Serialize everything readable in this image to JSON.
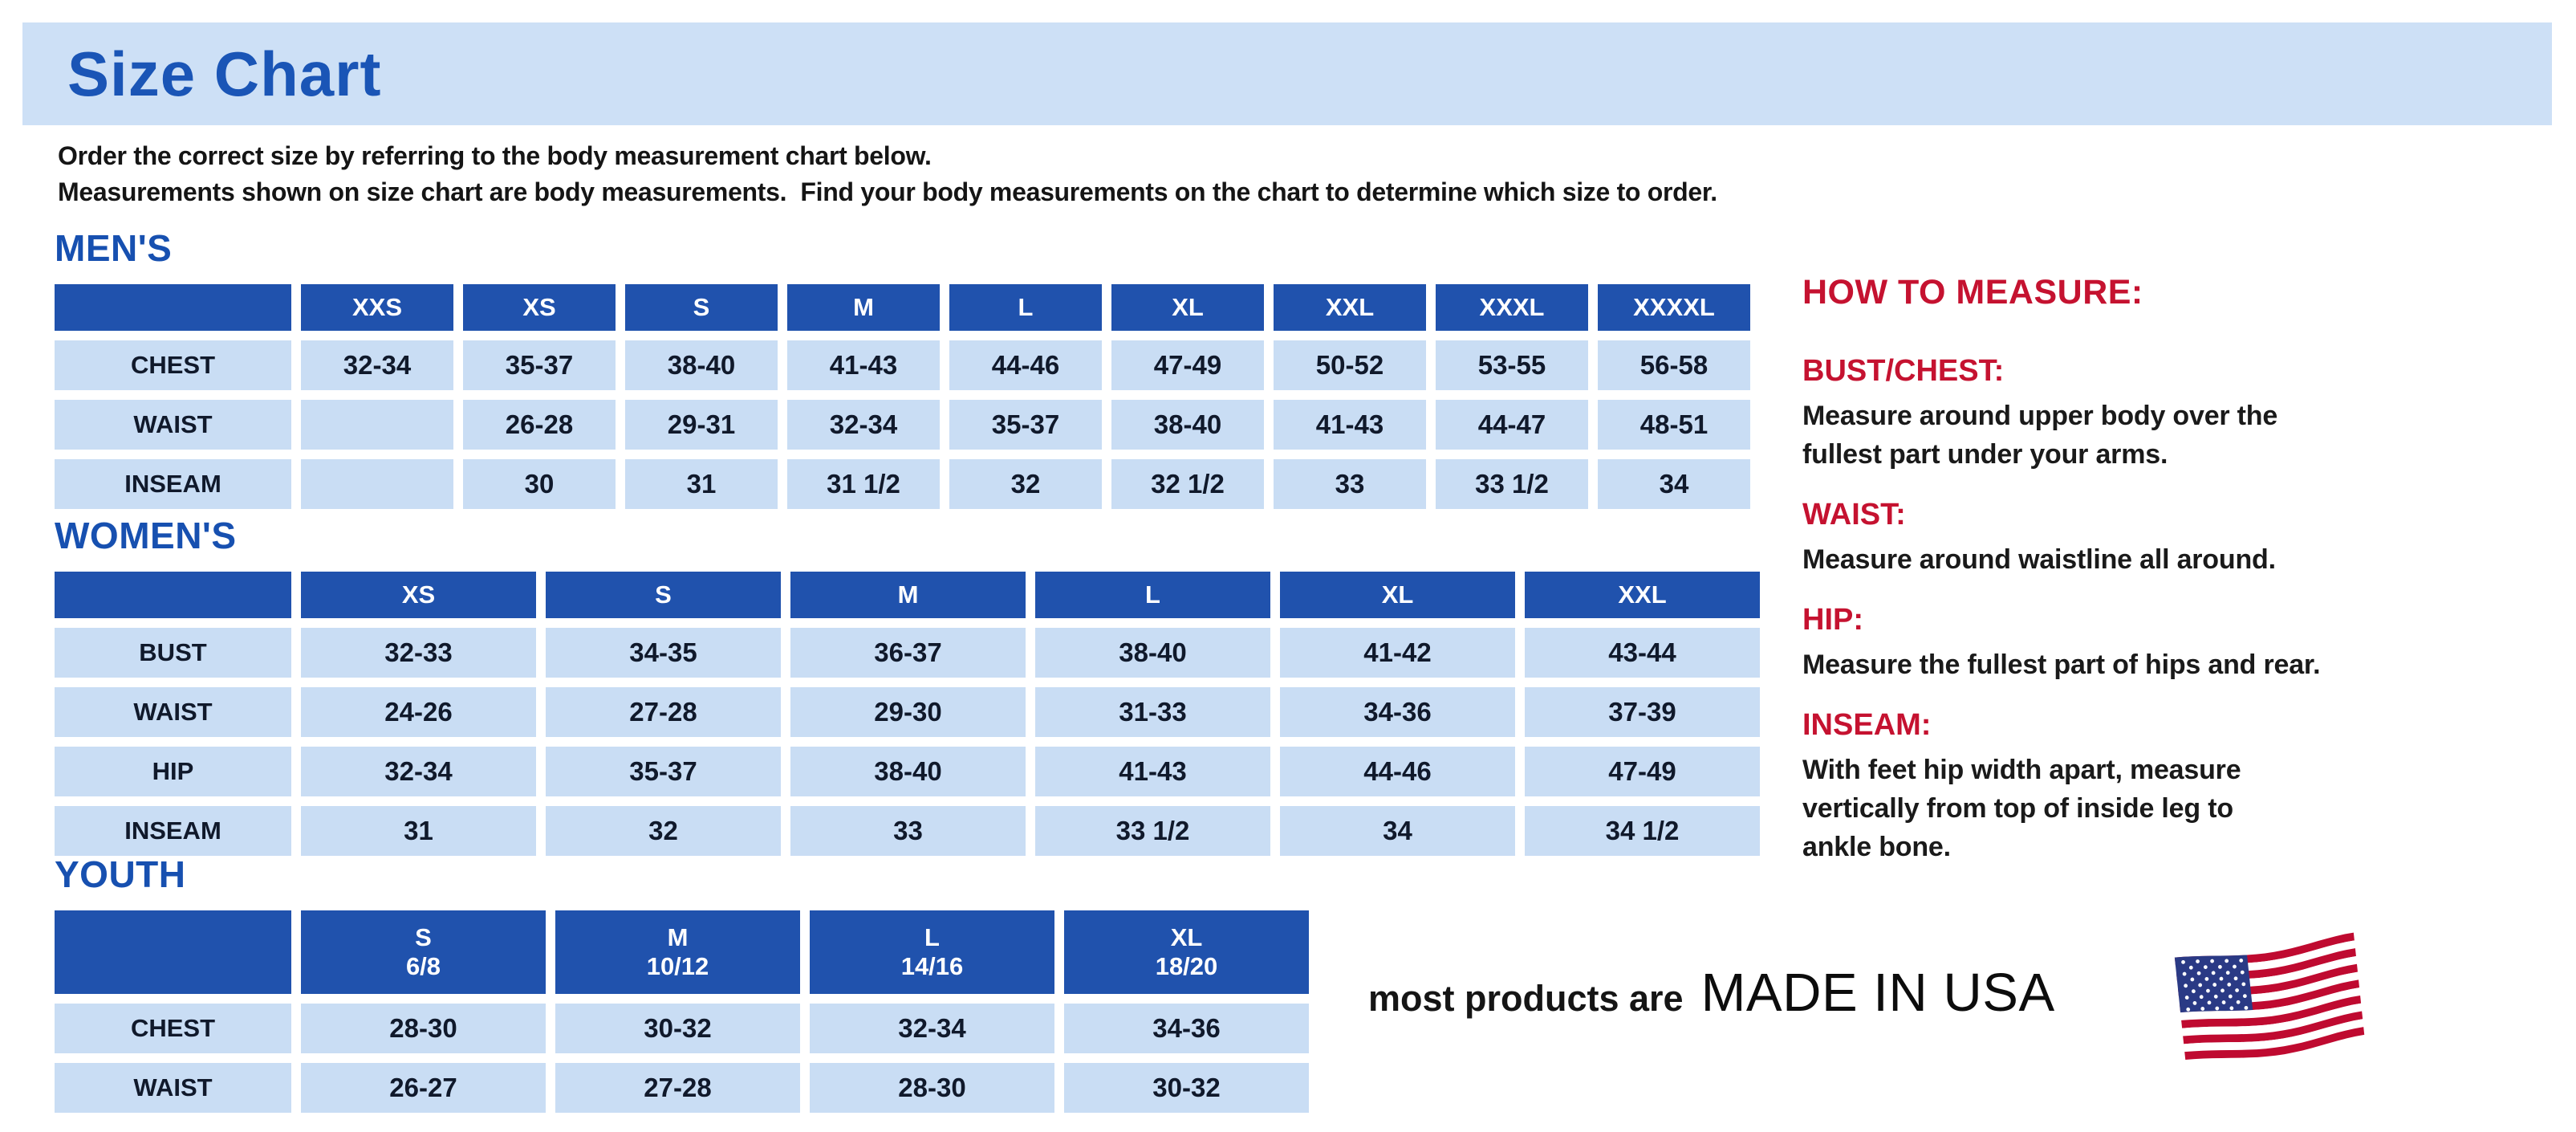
{
  "page": {
    "title": "Size Chart",
    "intro_line1": "Order the correct size by referring to the body measurement chart below.",
    "intro_line2": "Measurements shown on size chart are body measurements.  Find your body measurements on the chart to determine which size to order."
  },
  "tables": {
    "mens": {
      "heading": "MEN'S",
      "columns": [
        "XXS",
        "XS",
        "S",
        "M",
        "L",
        "XL",
        "XXL",
        "XXXL",
        "XXXXL"
      ],
      "rows": [
        {
          "label": "CHEST",
          "values": [
            "32-34",
            "35-37",
            "38-40",
            "41-43",
            "44-46",
            "47-49",
            "50-52",
            "53-55",
            "56-58"
          ]
        },
        {
          "label": "WAIST",
          "values": [
            "",
            "26-28",
            "29-31",
            "32-34",
            "35-37",
            "38-40",
            "41-43",
            "44-47",
            "48-51"
          ]
        },
        {
          "label": "INSEAM",
          "values": [
            "",
            "30",
            "31",
            "31 1/2",
            "32",
            "32 1/2",
            "33",
            "33 1/2",
            "34"
          ]
        }
      ]
    },
    "womens": {
      "heading": "WOMEN'S",
      "columns": [
        "XS",
        "S",
        "M",
        "L",
        "XL",
        "XXL"
      ],
      "rows": [
        {
          "label": "BUST",
          "values": [
            "32-33",
            "34-35",
            "36-37",
            "38-40",
            "41-42",
            "43-44"
          ]
        },
        {
          "label": "WAIST",
          "values": [
            "24-26",
            "27-28",
            "29-30",
            "31-33",
            "34-36",
            "37-39"
          ]
        },
        {
          "label": "HIP",
          "values": [
            "32-34",
            "35-37",
            "38-40",
            "41-43",
            "44-46",
            "47-49"
          ]
        },
        {
          "label": "INSEAM",
          "values": [
            "31",
            "32",
            "33",
            "33 1/2",
            "34",
            "34 1/2"
          ]
        }
      ]
    },
    "youth": {
      "heading": "YOUTH",
      "columns": [
        {
          "size": "S",
          "range": "6/8"
        },
        {
          "size": "M",
          "range": "10/12"
        },
        {
          "size": "L",
          "range": "14/16"
        },
        {
          "size": "XL",
          "range": "18/20"
        }
      ],
      "rows": [
        {
          "label": "CHEST",
          "values": [
            "28-30",
            "30-32",
            "32-34",
            "34-36"
          ]
        },
        {
          "label": "WAIST",
          "values": [
            "26-27",
            "27-28",
            "28-30",
            "30-32"
          ]
        }
      ]
    }
  },
  "how_to_measure": {
    "heading": "HOW TO MEASURE:",
    "items": [
      {
        "label": "BUST/CHEST:",
        "text": "Measure around upper body over the\nfullest part under your arms."
      },
      {
        "label": "WAIST:",
        "text": "Measure around waistline all around."
      },
      {
        "label": "HIP:",
        "text": "Measure the fullest part of hips and rear."
      },
      {
        "label": "INSEAM:",
        "text": "With feet hip width apart, measure\nvertically from top of inside leg to\nankle bone."
      }
    ]
  },
  "footer": {
    "prefix": "most products are",
    "made_in": "MADE IN USA",
    "flag_icon": "us-flag-icon"
  },
  "colors": {
    "banner_blue": "#cde0f6",
    "title_blue": "#1a55b6",
    "section_blue": "#1750b0",
    "table_header_blue": "#2052ad",
    "cell_blue": "#c9ddf4",
    "label_red": "#c51230",
    "flag_red": "#bf0a30",
    "flag_blue": "#2a3a85"
  }
}
